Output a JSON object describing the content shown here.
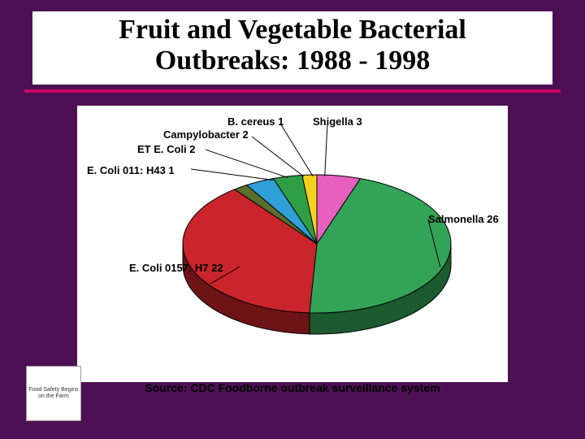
{
  "title_line1": "Fruit and Vegetable Bacterial",
  "title_line2": "Outbreaks: 1988 - 1998",
  "hr_color": "#cc0066",
  "slide_bg": "#4e1054",
  "chart": {
    "type": "pie",
    "outline_color": "#000000",
    "side_color": "#404040",
    "slices": [
      {
        "label": "Salmonella 26",
        "value": 26,
        "color": "#33a457"
      },
      {
        "label": "E. Coli 0157: H7 22",
        "value": 22,
        "color": "#c9252b"
      },
      {
        "label": "E. Coli 011: H43 1",
        "value": 1,
        "color": "#5a6e2f"
      },
      {
        "label": "ET E. Coli 2",
        "value": 2,
        "color": "#2fa0d8"
      },
      {
        "label": "Campylobacter 2",
        "value": 2,
        "color": "#2e9f47"
      },
      {
        "label": "B. cereus 1",
        "value": 1,
        "color": "#f2d21f"
      },
      {
        "label": "Shigella 3",
        "value": 3,
        "color": "#e85fbf"
      }
    ]
  },
  "labels": {
    "shigella": "Shigella 3",
    "bcereus": "B. cereus 1",
    "campy": "Campylobacter 2",
    "etecoli": "ET E. Coli 2",
    "ecoli011": "E. Coli 011: H43 1",
    "ecoli0157": "E. Coli 0157: H7 22",
    "salmonella": "Salmonella 26"
  },
  "source": "Source: CDC Foodborne outbreak surveillance system",
  "logo_text": "Food Safety Begins on the Farm"
}
